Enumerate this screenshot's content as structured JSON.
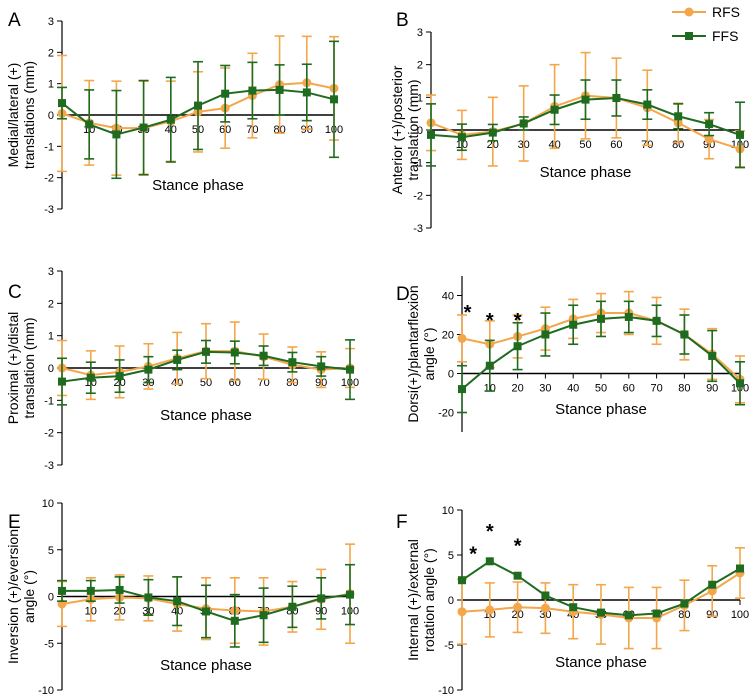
{
  "legend": {
    "position": "top-right",
    "entries": [
      {
        "label": "RFS",
        "color": "#F4A64B",
        "marker": "circle"
      },
      {
        "label": "FFS",
        "color": "#1F6B1F",
        "marker": "square"
      }
    ]
  },
  "chart_data": [
    {
      "type": "line",
      "panel": "A",
      "xlabel": "Stance phase",
      "ylabel": "Medial/lateral (+)\ntranslations (mm)",
      "ylim": [
        -3,
        3
      ],
      "yticks": [
        -3,
        -2,
        -1,
        0,
        1,
        2,
        3
      ],
      "xticks": [
        10,
        20,
        30,
        40,
        50,
        60,
        70,
        80,
        90,
        100
      ],
      "x": [
        0,
        10,
        20,
        30,
        40,
        50,
        60,
        70,
        80,
        90,
        100
      ],
      "series": [
        {
          "name": "RFS",
          "values": [
            0.05,
            -0.25,
            -0.42,
            -0.42,
            -0.2,
            0.1,
            0.22,
            0.62,
            0.97,
            1.03,
            0.85
          ],
          "err": [
            1.85,
            1.35,
            1.5,
            1.5,
            1.28,
            1.28,
            1.28,
            1.35,
            1.55,
            1.48,
            1.65
          ]
        },
        {
          "name": "FFS",
          "values": [
            0.38,
            -0.3,
            -0.62,
            -0.4,
            -0.15,
            0.3,
            0.68,
            0.78,
            0.8,
            0.72,
            0.5
          ],
          "err": [
            0.5,
            1.1,
            1.4,
            1.5,
            1.35,
            1.4,
            0.9,
            0.9,
            0.8,
            0.9,
            1.85
          ]
        }
      ],
      "annotations": []
    },
    {
      "type": "line",
      "panel": "B",
      "xlabel": "Stance phase",
      "ylabel": "Anterior (+)/posterior\ntranslation (mm)",
      "ylim": [
        -3,
        3
      ],
      "yticks": [
        -3,
        -2,
        -1,
        0,
        1,
        2,
        3
      ],
      "xticks": [
        10,
        20,
        30,
        40,
        50,
        60,
        70,
        80,
        90,
        100
      ],
      "x": [
        0,
        10,
        20,
        30,
        40,
        50,
        60,
        70,
        80,
        90,
        100
      ],
      "series": [
        {
          "name": "RFS",
          "values": [
            0.22,
            -0.15,
            -0.05,
            0.2,
            0.72,
            1.05,
            0.98,
            0.68,
            0.22,
            -0.28,
            -0.58
          ],
          "err": [
            0.85,
            0.75,
            1.05,
            1.15,
            1.28,
            1.32,
            1.22,
            1.15,
            0.6,
            0.6,
            0.55
          ]
        },
        {
          "name": "FFS",
          "values": [
            -0.15,
            -0.22,
            -0.08,
            0.2,
            0.62,
            0.93,
            0.98,
            0.78,
            0.42,
            0.18,
            -0.15
          ],
          "err": [
            0.95,
            0.4,
            0.25,
            0.2,
            0.45,
            0.6,
            0.55,
            0.45,
            0.38,
            0.35,
            1.0
          ]
        }
      ],
      "annotations": []
    },
    {
      "type": "line",
      "panel": "C",
      "xlabel": "Stance phase",
      "ylabel": "Proximal (+)/distal\ntranslation (mm)",
      "ylim": [
        -3,
        3
      ],
      "yticks": [
        -3,
        -2,
        -1,
        0,
        1,
        2,
        3
      ],
      "xticks": [
        10,
        20,
        30,
        40,
        50,
        60,
        70,
        80,
        90,
        100
      ],
      "x": [
        0,
        10,
        20,
        30,
        40,
        50,
        60,
        70,
        80,
        90,
        100
      ],
      "series": [
        {
          "name": "RFS",
          "values": [
            0.0,
            -0.22,
            -0.12,
            0.05,
            0.3,
            0.52,
            0.52,
            0.35,
            0.1,
            -0.05,
            0.0
          ],
          "err": [
            0.85,
            0.75,
            0.8,
            0.7,
            0.8,
            0.85,
            0.9,
            0.7,
            0.55,
            0.55,
            0.6
          ]
        },
        {
          "name": "FFS",
          "values": [
            -0.42,
            -0.3,
            -0.25,
            -0.05,
            0.25,
            0.5,
            0.48,
            0.38,
            0.18,
            0.05,
            -0.05
          ],
          "err": [
            0.72,
            0.48,
            0.5,
            0.4,
            0.3,
            0.35,
            0.35,
            0.3,
            0.3,
            0.3,
            0.92
          ]
        }
      ],
      "annotations": []
    },
    {
      "type": "line",
      "panel": "D",
      "xlabel": "Stance phase",
      "ylabel": "Dorsi(+)/plantarflexion\nangle (°)",
      "ylim": [
        -30,
        50
      ],
      "yticks": [
        -20,
        0,
        20,
        40
      ],
      "xticks": [
        10,
        20,
        30,
        40,
        50,
        60,
        70,
        80,
        90,
        100
      ],
      "x": [
        0,
        10,
        20,
        30,
        40,
        50,
        60,
        70,
        80,
        90,
        100
      ],
      "series": [
        {
          "name": "RFS",
          "values": [
            18,
            15,
            19,
            23,
            28,
            31,
            31,
            27,
            20,
            10,
            -3
          ],
          "err": [
            12,
            12,
            11,
            11,
            10,
            10,
            11,
            12,
            13,
            13,
            12
          ]
        },
        {
          "name": "FFS",
          "values": [
            -8,
            4,
            14,
            20,
            25,
            28,
            29,
            27,
            20,
            9,
            -5
          ],
          "err": [
            12,
            13,
            12,
            11,
            10,
            9,
            8,
            8,
            10,
            13,
            11
          ]
        }
      ],
      "annotations": [
        {
          "text": "*",
          "x": 2,
          "y": 33
        },
        {
          "text": "*",
          "x": 10,
          "y": 29
        },
        {
          "text": "*",
          "x": 20,
          "y": 29
        }
      ]
    },
    {
      "type": "line",
      "panel": "E",
      "xlabel": "Stance phase",
      "ylabel": "Inversion (+)/eversion\nangle (°)",
      "ylim": [
        -10,
        10
      ],
      "yticks": [
        -10,
        -5,
        0,
        5,
        10
      ],
      "xticks": [
        10,
        20,
        30,
        40,
        50,
        60,
        70,
        80,
        90,
        100
      ],
      "x": [
        0,
        10,
        20,
        30,
        40,
        50,
        60,
        70,
        80,
        90,
        100
      ],
      "series": [
        {
          "name": "RFS",
          "values": [
            -0.8,
            -0.3,
            -0.1,
            -0.2,
            -0.8,
            -1.3,
            -1.5,
            -1.6,
            -1.1,
            -0.3,
            0.3
          ],
          "err": [
            2.4,
            2.3,
            2.4,
            2.4,
            2.9,
            3.3,
            3.5,
            3.6,
            2.7,
            3.2,
            5.3
          ]
        },
        {
          "name": "FFS",
          "values": [
            0.6,
            0.6,
            0.7,
            -0.1,
            -0.5,
            -1.6,
            -2.6,
            -2.0,
            -1.1,
            -0.2,
            0.2
          ],
          "err": [
            1.1,
            1.1,
            1.4,
            1.9,
            2.6,
            2.8,
            2.8,
            2.9,
            2.2,
            2.2,
            3.2
          ]
        }
      ],
      "annotations": []
    },
    {
      "type": "line",
      "panel": "F",
      "xlabel": "Stance phase",
      "ylabel": "Internal (+)/external\nrotation angle (°)",
      "ylim": [
        -10,
        10
      ],
      "yticks": [
        -10,
        -5,
        0,
        5,
        10
      ],
      "xticks": [
        10,
        20,
        30,
        40,
        50,
        60,
        70,
        80,
        90,
        100
      ],
      "x": [
        0,
        10,
        20,
        30,
        40,
        50,
        60,
        70,
        80,
        90,
        100
      ],
      "series": [
        {
          "name": "RFS",
          "values": [
            -1.3,
            -1.1,
            -0.8,
            -0.9,
            -1.3,
            -1.6,
            -2.0,
            -2.0,
            -0.6,
            1.0,
            3.0
          ],
          "err": [
            3.6,
            3.0,
            2.8,
            2.8,
            3.0,
            3.3,
            3.4,
            3.4,
            2.8,
            2.8,
            2.8
          ]
        },
        {
          "name": "FFS",
          "values": [
            2.2,
            4.3,
            2.7,
            0.5,
            -0.8,
            -1.4,
            -1.7,
            -1.5,
            -0.4,
            1.7,
            3.5
          ]
        }
      ],
      "annotations": [
        {
          "text": "*",
          "x": 4,
          "y": 5.5
        },
        {
          "text": "*",
          "x": 10,
          "y": 8.0
        },
        {
          "text": "*",
          "x": 20,
          "y": 6.4
        }
      ]
    }
  ],
  "panel_letters": [
    "A",
    "B",
    "C",
    "D",
    "E",
    "F"
  ]
}
